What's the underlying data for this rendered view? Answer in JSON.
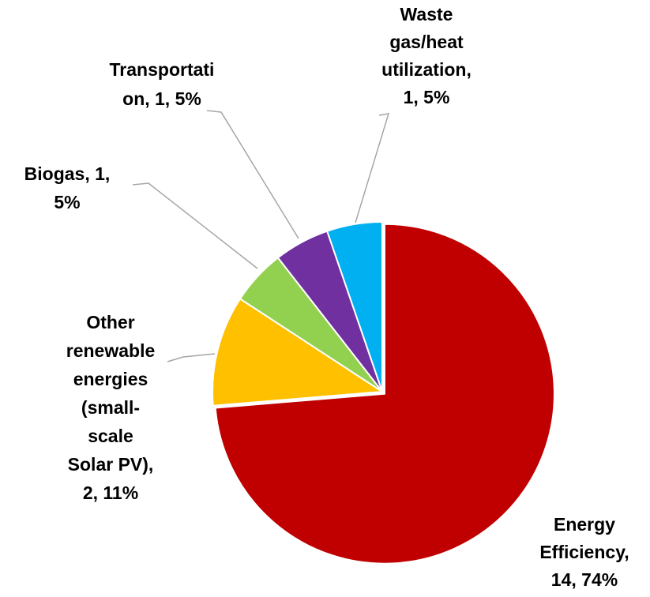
{
  "chart_data": {
    "type": "pie",
    "values": [
      14,
      2,
      1,
      1,
      1
    ],
    "value_labels": [
      [
        "Energy",
        "Efficiency,",
        "14, 74%"
      ],
      [
        "Other",
        "renewable",
        "energies",
        "(small-",
        "scale",
        "Solar PV),",
        "2, 11%"
      ],
      [
        "Biogas, 1,",
        "5%"
      ],
      [
        "Transportati",
        "on, 1, 5%"
      ],
      [
        "Waste",
        "gas/heat",
        "utilization,",
        "1, 5%"
      ]
    ],
    "colors": [
      "#c00000",
      "#ffc000",
      "#92d050",
      "#7030a0",
      "#00b0f0"
    ]
  }
}
